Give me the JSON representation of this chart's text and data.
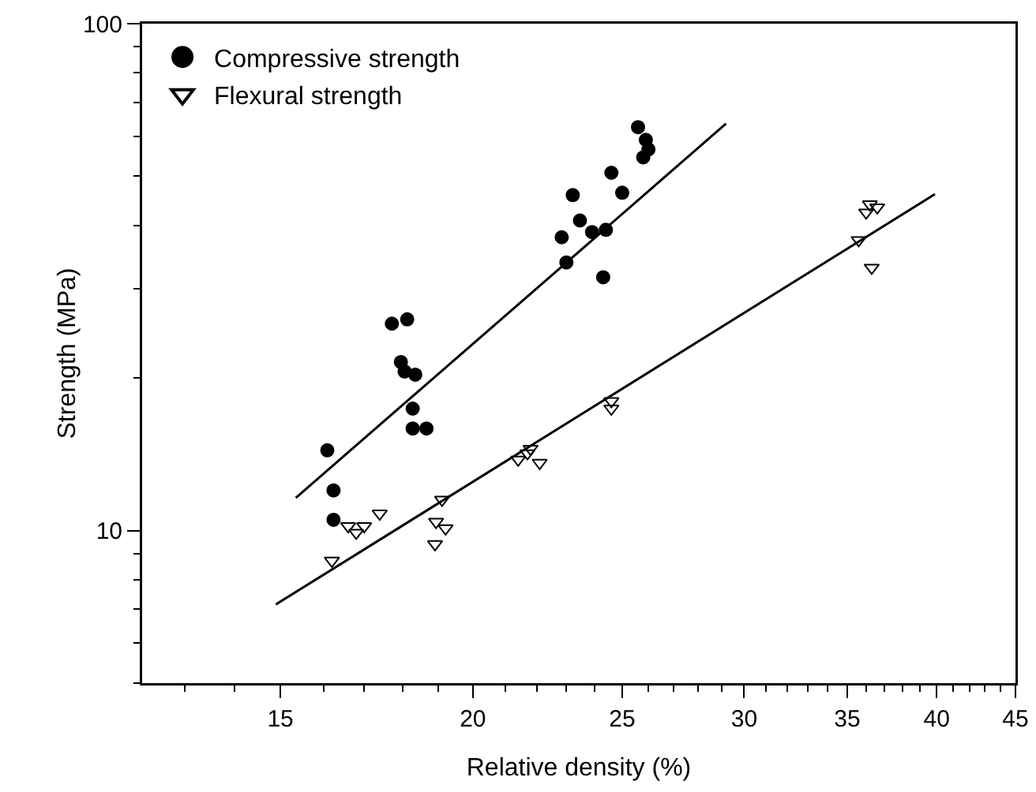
{
  "chart_data": {
    "type": "scatter",
    "xlabel": "Relative density (%)",
    "ylabel": "Strength (MPa)",
    "log": "xy",
    "xlim": [
      12.2,
      45
    ],
    "ylim": [
      5,
      100
    ],
    "xticks": [
      15,
      20,
      25,
      30,
      35,
      40,
      45
    ],
    "yticks": [
      10,
      100
    ],
    "grid": false,
    "legend": "top left",
    "series": [
      {
        "name": "Compressive strength",
        "color": "#000000",
        "marker": "circle",
        "x": [
          16.09,
          16.24,
          16.24,
          17.72,
          18.13,
          17.96,
          18.06,
          18.35,
          18.28,
          18.28,
          18.66,
          22.84,
          23.22,
          23.0,
          23.47,
          23.9,
          24.4,
          24.3,
          24.6,
          25.0,
          25.6,
          25.9,
          26.0,
          25.8
        ],
        "values": [
          14.4,
          12.0,
          10.5,
          25.6,
          26.1,
          21.5,
          20.6,
          20.3,
          17.4,
          15.9,
          15.9,
          37.9,
          45.9,
          33.8,
          40.9,
          38.8,
          39.2,
          31.6,
          50.8,
          46.4,
          62.5,
          59,
          56.5,
          54.5
        ]
      },
      {
        "name": "Flexural strength",
        "color": "#000000",
        "marker": "triangle",
        "x": [
          16.2,
          16.6,
          16.8,
          17.0,
          17.4,
          18.93,
          18.9,
          19.1,
          19.2,
          21.4,
          21.7,
          21.8,
          22.1,
          24.6,
          24.6,
          35.6,
          36.0,
          36.2,
          36.6,
          36.3
        ],
        "values": [
          8.72,
          10.2,
          9.9,
          10.2,
          10.8,
          10.4,
          9.4,
          11.5,
          10.1,
          13.8,
          14.2,
          14.5,
          13.6,
          17.4,
          18.0,
          37.4,
          42.4,
          44.0,
          43.4,
          33.0
        ]
      },
      {
        "type": "line",
        "color": "#000000",
        "marker": "none",
        "x": [
          15.35,
          29.2
        ],
        "values": [
          11.6,
          63.5
        ]
      },
      {
        "type": "line",
        "color": "#000000",
        "marker": "none",
        "x": [
          14.9,
          39.9
        ],
        "values": [
          7.15,
          46.1
        ]
      }
    ]
  }
}
